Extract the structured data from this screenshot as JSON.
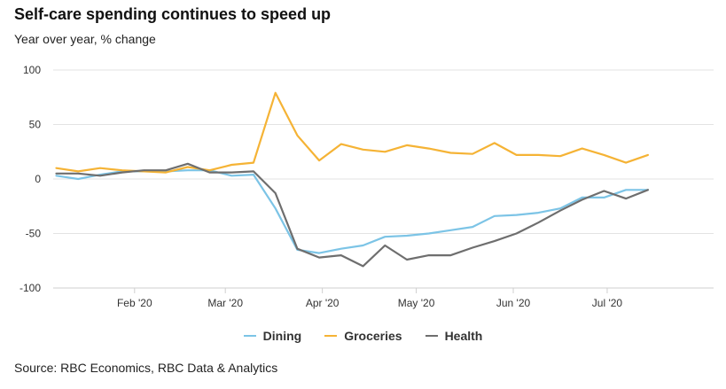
{
  "header": {
    "title": "Self-care spending continues to speed up",
    "subtitle": "Year over year, % change"
  },
  "footer": {
    "source": "Source: RBC Economics, RBC Data & Analytics"
  },
  "chart_data": {
    "type": "line",
    "title": "Self-care spending continues to speed up",
    "subtitle": "Year over year, % change",
    "xlabel": "",
    "ylabel": "",
    "ylim": [
      -100,
      100
    ],
    "yticks": [
      100,
      50,
      0,
      -50,
      -100
    ],
    "xlim": [
      "2020-01-06",
      "2020-08-04"
    ],
    "xticks": [
      {
        "label": "Feb '20",
        "date": "2020-02-01"
      },
      {
        "label": "Mar '20",
        "date": "2020-03-01"
      },
      {
        "label": "Apr '20",
        "date": "2020-04-01"
      },
      {
        "label": "May '20",
        "date": "2020-05-01"
      },
      {
        "label": "Jun '20",
        "date": "2020-06-01"
      },
      {
        "label": "Jul '20",
        "date": "2020-07-01"
      }
    ],
    "grid": "horizontal",
    "legend_position": "bottom",
    "x": [
      "2020-01-07",
      "2020-01-14",
      "2020-01-21",
      "2020-01-28",
      "2020-02-04",
      "2020-02-11",
      "2020-02-18",
      "2020-02-25",
      "2020-03-03",
      "2020-03-10",
      "2020-03-17",
      "2020-03-24",
      "2020-03-31",
      "2020-04-07",
      "2020-04-14",
      "2020-04-21",
      "2020-04-28",
      "2020-05-05",
      "2020-05-12",
      "2020-05-19",
      "2020-05-26",
      "2020-06-02",
      "2020-06-09",
      "2020-06-16",
      "2020-06-23",
      "2020-06-30",
      "2020-07-07",
      "2020-07-14",
      "2020-07-21",
      "2020-07-28",
      "2020-08-04"
    ],
    "series": [
      {
        "name": "Dining",
        "color": "#7cc4e6",
        "values": [
          3,
          0,
          4,
          7,
          7,
          7,
          8,
          8,
          3,
          4,
          -27,
          -65,
          -68,
          -64,
          -61,
          -53,
          -52,
          -50,
          -47,
          -44,
          -34,
          -33,
          -31,
          -27,
          -17,
          -17,
          -10,
          -10,
          null,
          null,
          null
        ]
      },
      {
        "name": "Groceries",
        "color": "#f5b335",
        "values": [
          10,
          7,
          10,
          8,
          7,
          6,
          11,
          8,
          13,
          15,
          79,
          40,
          17,
          32,
          27,
          25,
          31,
          28,
          24,
          23,
          33,
          22,
          22,
          21,
          28,
          22,
          15,
          22,
          null,
          null,
          null
        ]
      },
      {
        "name": "Health",
        "color": "#6e6e6e",
        "values": [
          5,
          5,
          3,
          6,
          8,
          8,
          14,
          6,
          6,
          7,
          -13,
          -64,
          -72,
          -70,
          -80,
          -61,
          -74,
          -70,
          -70,
          -63,
          -57,
          -50,
          -40,
          -29,
          -19,
          -11,
          -18,
          -10,
          null,
          null,
          null
        ]
      }
    ]
  }
}
